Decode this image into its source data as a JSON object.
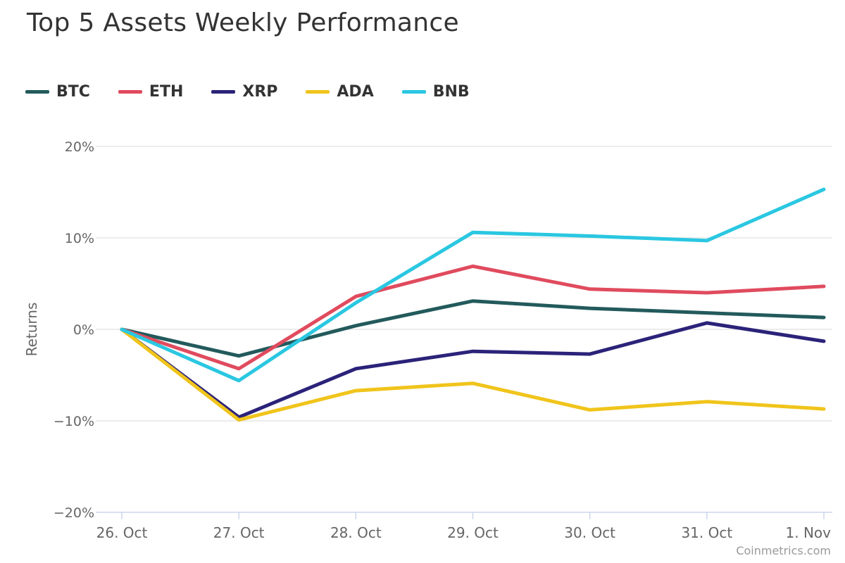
{
  "chart_data": {
    "type": "line",
    "title": "Top 5 Assets Weekly Performance",
    "xlabel": "",
    "ylabel": "Returns",
    "categories": [
      "26. Oct",
      "27. Oct",
      "28. Oct",
      "29. Oct",
      "30. Oct",
      "31. Oct",
      "1. Nov"
    ],
    "yticks": [
      -20,
      -10,
      0,
      10,
      20
    ],
    "ytick_labels": [
      "−20%",
      "−10%",
      "0%",
      "10%",
      "20%"
    ],
    "ylim": [
      -20,
      20
    ],
    "grid": true,
    "legend_position": "top-left",
    "series": [
      {
        "name": "BTC",
        "color": "#235a5c",
        "values": [
          0,
          -2.9,
          0.4,
          3.1,
          2.3,
          1.8,
          1.3
        ]
      },
      {
        "name": "ETH",
        "color": "#e04b5e",
        "values": [
          0,
          -4.3,
          3.6,
          6.9,
          4.4,
          4.0,
          4.7
        ]
      },
      {
        "name": "XRP",
        "color": "#2b2379",
        "values": [
          0,
          -9.6,
          -4.3,
          -2.4,
          -2.7,
          0.7,
          -1.3
        ]
      },
      {
        "name": "ADA",
        "color": "#f0c41b",
        "values": [
          0,
          -9.9,
          -6.7,
          -5.9,
          -8.8,
          -7.9,
          -8.7
        ]
      },
      {
        "name": "BNB",
        "color": "#2ac7e1",
        "values": [
          0,
          -5.6,
          2.9,
          10.6,
          10.2,
          9.7,
          15.3
        ]
      }
    ]
  },
  "credit": "Coinmetrics.com"
}
